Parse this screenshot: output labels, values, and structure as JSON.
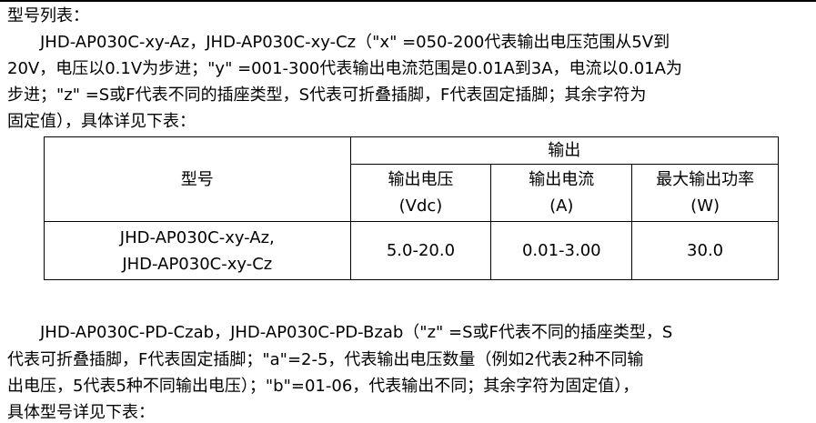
{
  "heading": "型号列表：",
  "paragraph1": [
    "　　JHD-AP030C-xy-Az，JHD-AP030C-xy-Cz（\"x\" =050-200代表输出电压范围从5V到",
    "20V，电压以0.1V为步进；\"y\" =001-300代表输出电流范围是0.01A到3A，电流以0.01A为",
    "步进；\"z\" =S或F代表不同的插座类型，S代表可折叠插脚，F代表固定插脚；其余字符为",
    "固定值），具体详见下表："
  ],
  "table": {
    "model_header": "型号",
    "output_header": "输出",
    "columns": [
      {
        "label": "输出电压",
        "unit": "(Vdc)"
      },
      {
        "label": "输出电流",
        "unit": "(A)"
      },
      {
        "label": "最大输出功率",
        "unit": "(W)"
      }
    ],
    "rows": [
      {
        "model": [
          "JHD-AP030C-xy-Az,",
          "JHD-AP030C-xy-Cz"
        ],
        "voltage": "5.0-20.0",
        "current": "0.01-3.00",
        "power": "30.0"
      }
    ]
  },
  "paragraph2": [
    "　　JHD-AP030C-PD-Czab，JHD-AP030C-PD-Bzab（\"z\" =S或F代表不同的插座类型，S",
    "代表可折叠插脚，F代表固定插脚；\"a\"=2-5，代表输出电压数量（例如2代表2种不同输",
    "出电压，5代表5种不同输出电压）；\"b\"=01-06，代表输出不同；其余字符为固定值），",
    "具体型号详见下表："
  ]
}
